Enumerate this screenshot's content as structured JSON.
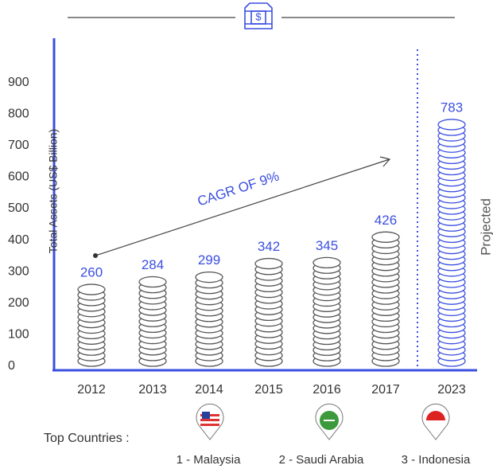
{
  "chart_data": {
    "type": "bar",
    "y_label": "Total Assets (US$ Billion)",
    "categories": [
      "2012",
      "2013",
      "2014",
      "2015",
      "2016",
      "2017",
      "2023"
    ],
    "values": [
      260,
      284,
      299,
      342,
      345,
      426,
      783
    ],
    "colors": [
      "#555555",
      "#555555",
      "#555555",
      "#555555",
      "#555555",
      "#555555",
      "#3b4fe0"
    ],
    "label_color": "#3b4fe0",
    "ylim": [
      0,
      1000
    ],
    "yticks": [
      0,
      100,
      200,
      300,
      400,
      500,
      600,
      700,
      800,
      900
    ],
    "annotation": "CAGR OF 9%",
    "projected_label": "Projected",
    "top_countries": {
      "label": "Top Countries :",
      "items": [
        "1 - Malaysia",
        "2 - Saudi Arabia",
        "3 - Indonesia"
      ]
    }
  }
}
